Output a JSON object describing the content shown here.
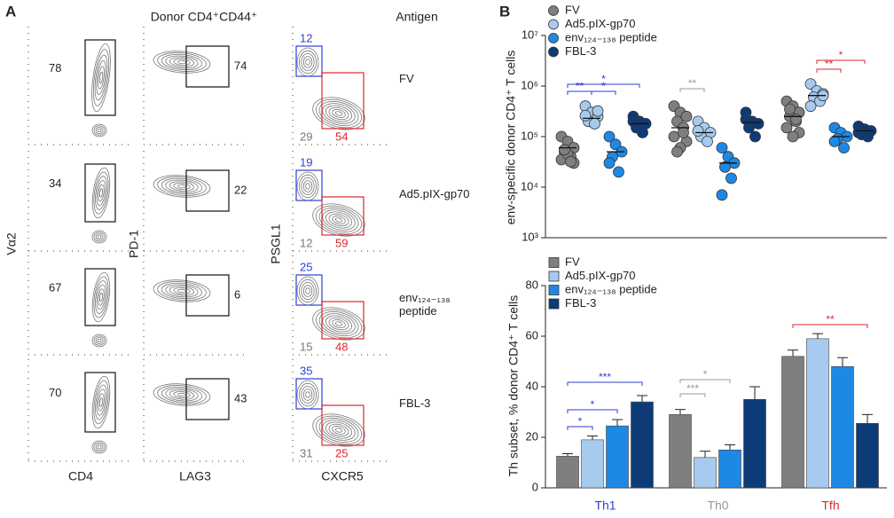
{
  "panel_a": {
    "label": "A",
    "header": "Donor CD4⁺CD44⁺",
    "antigen_header": "Antigen",
    "antigens": [
      "FV",
      "Ad5.pIX-gp70",
      "env₁₂₄₋₁₃₈ peptide",
      "FBL-3"
    ],
    "x_labels": [
      "CD4",
      "LAG3",
      "CXCR5"
    ],
    "y_labels": [
      "Vα2",
      "PD-1",
      "PSGL1"
    ],
    "va2_gate": [
      78,
      34,
      67,
      70
    ],
    "pd1_gate": [
      74,
      22,
      6,
      43
    ],
    "psgl1_gate": [
      12,
      19,
      25,
      35
    ],
    "double_negative_gate": [
      29,
      12,
      15,
      31
    ],
    "cxcr5_gate": [
      54,
      59,
      48,
      25
    ]
  },
  "chart_data": [
    {
      "type": "scatter",
      "label": "B",
      "ylabel": "env-specific  donor CD4⁺ T cells",
      "log_y": true,
      "ylim": [
        1000,
        10000000
      ],
      "yticks": [
        {
          "value": 1000,
          "label": "10³"
        },
        {
          "value": 10000,
          "label": "10⁴"
        },
        {
          "value": 100000,
          "label": "10⁵"
        },
        {
          "value": 1000000,
          "label": "10⁶"
        },
        {
          "value": 10000000,
          "label": "10⁷"
        }
      ],
      "legend_position": "upper left",
      "series": [
        {
          "name": "FV",
          "color": "#7f7f7f",
          "values": [
            [
              100000,
              80000,
              60000,
              50000,
              40000,
              35000,
              30000,
              45000,
              55000,
              32000
            ],
            [
              400000,
              300000,
              250000,
              200000,
              150000,
              100000,
              80000,
              60000,
              50000,
              120000
            ],
            [
              500000,
              400000,
              300000,
              250000,
              200000,
              150000,
              120000,
              100000,
              350000,
              220000
            ]
          ],
          "means": [
            60000,
            150000,
            250000
          ]
        },
        {
          "name": "Ad5.pIX-gp70",
          "color": "#a6cbef",
          "values": [
            [
              400000,
              300000,
              250000,
              200000,
              180000,
              260000,
              320000
            ],
            [
              200000,
              150000,
              120000,
              100000,
              80000,
              130000
            ],
            [
              1100000,
              800000,
              700000,
              600000,
              500000,
              400000,
              650000
            ]
          ],
          "means": [
            230000,
            120000,
            650000
          ]
        },
        {
          "name": "env₁₂₄₋₁₃₈ peptide",
          "color": "#1e88e5",
          "values": [
            [
              100000,
              70000,
              50000,
              40000,
              20000,
              30000
            ],
            [
              60000,
              40000,
              30000,
              25000,
              15000,
              7000
            ],
            [
              150000,
              120000,
              100000,
              90000,
              60000,
              80000
            ]
          ],
          "means": [
            50000,
            30000,
            100000
          ]
        },
        {
          "name": "FBL-3",
          "color": "#0d3b78",
          "values": [
            [
              250000,
              200000,
              180000,
              150000,
              120000,
              200000
            ],
            [
              300000,
              200000,
              180000,
              150000,
              100000,
              220000
            ],
            [
              160000,
              140000,
              130000,
              110000,
              100000,
              120000
            ]
          ],
          "means": [
            180000,
            190000,
            130000
          ]
        }
      ],
      "annotations": [
        {
          "text": "*",
          "color": "#2b3fd6"
        },
        {
          "text": "**",
          "color": "#2b3fd6"
        },
        {
          "text": "*",
          "color": "#2b3fd6"
        },
        {
          "text": "**",
          "color": "#9a9a9a"
        },
        {
          "text": "*",
          "color": "#e0262a"
        },
        {
          "text": "**",
          "color": "#e0262a"
        }
      ]
    },
    {
      "type": "bar",
      "ylabel": "Th subset, % donor CD4⁺ T cells",
      "categories": [
        "Th1",
        "Th0",
        "Tfh"
      ],
      "category_colors": [
        "#2b3fd6",
        "#9a9a9a",
        "#e0262a"
      ],
      "ylim": [
        0,
        80
      ],
      "yticks": [
        0,
        20,
        40,
        60,
        80
      ],
      "legend_position": "upper left",
      "series": [
        {
          "name": "FV",
          "color": "#7f7f7f",
          "values": [
            12.5,
            29,
            52
          ],
          "errors": [
            1,
            2,
            2.5
          ]
        },
        {
          "name": "Ad5.pIX-gp70",
          "color": "#a6cbef",
          "values": [
            19,
            12,
            59
          ],
          "errors": [
            1.5,
            2.5,
            2
          ]
        },
        {
          "name": "env₁₂₄₋₁₃₈ peptide",
          "color": "#1e88e5",
          "values": [
            24.5,
            15,
            48
          ],
          "errors": [
            2.5,
            2,
            3.5
          ]
        },
        {
          "name": "FBL-3",
          "color": "#0d3b78",
          "values": [
            34,
            35,
            25.5
          ],
          "errors": [
            2.5,
            5,
            3.5
          ]
        }
      ],
      "annotations": [
        {
          "text": "*",
          "color": "#2b3fd6"
        },
        {
          "text": "*",
          "color": "#2b3fd6"
        },
        {
          "text": "***",
          "color": "#2b3fd6"
        },
        {
          "text": "***",
          "color": "#9a9a9a"
        },
        {
          "text": "*",
          "color": "#9a9a9a"
        },
        {
          "text": "**",
          "color": "#e0262a"
        }
      ]
    }
  ]
}
